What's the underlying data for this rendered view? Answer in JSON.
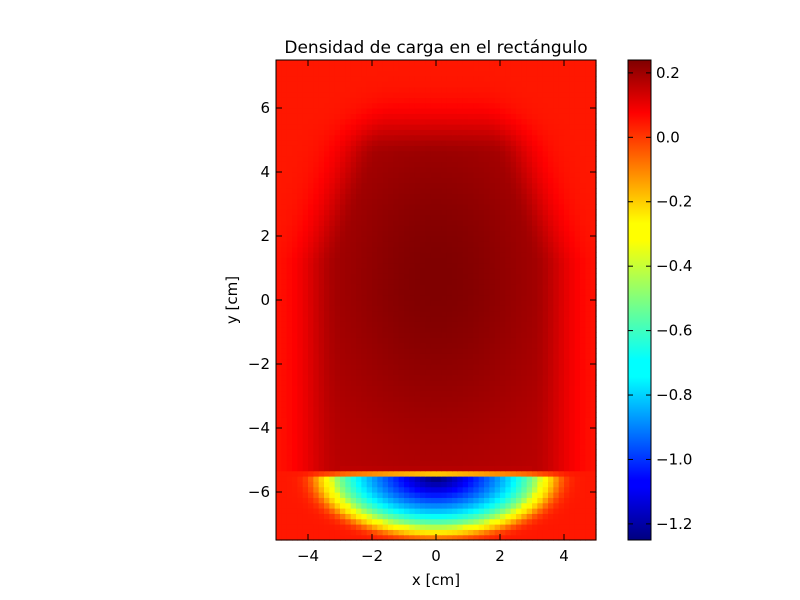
{
  "chart_data": {
    "type": "heatmap",
    "title": "Densidad de carga en el rectángulo",
    "xlabel": "x [cm]",
    "ylabel": "y [cm]",
    "xlim": [
      -5,
      5
    ],
    "ylim": [
      -7.5,
      7.5
    ],
    "x_ticks": [
      -4,
      -2,
      0,
      2,
      4
    ],
    "y_ticks": [
      -6,
      -4,
      -2,
      0,
      2,
      4,
      6
    ],
    "x_tick_labels": [
      "−4",
      "−2",
      "0",
      "2",
      "4"
    ],
    "y_tick_labels": [
      "−6",
      "−4",
      "−2",
      "0",
      "2",
      "4",
      "6"
    ],
    "colormap": "jet",
    "color_range": [
      -1.25,
      0.24
    ],
    "colorbar": {
      "ticks": [
        0.2,
        0.0,
        -0.2,
        -0.4,
        -0.6,
        -0.8,
        -1.0,
        -1.2
      ],
      "tick_labels": [
        "0.2",
        "0.0",
        "−0.2",
        "−0.4",
        "−0.6",
        "−0.8",
        "−1.0",
        "−1.2"
      ],
      "placement": "right"
    },
    "grid": false,
    "features": [
      {
        "description": "positive charge region",
        "x_range": [
          -3,
          3
        ],
        "y_range": [
          -5.4,
          4
        ],
        "peak_value": 0.24,
        "peak_at": [
          0,
          0.7
        ]
      },
      {
        "description": "negative charge layer",
        "x_range": [
          -3.5,
          3.5
        ],
        "y_range": [
          -7.1,
          -5.5
        ],
        "min_value": -1.25,
        "min_at": [
          0,
          -5.9
        ]
      }
    ]
  }
}
